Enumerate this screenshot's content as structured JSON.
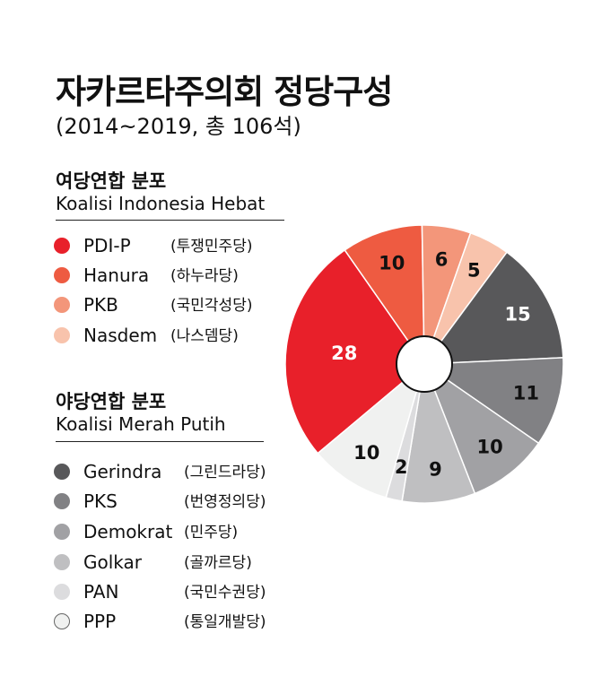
{
  "title": "자카르타주의회 정당구성",
  "subtitle": "(2014~2019, 총 106석)",
  "groups": [
    {
      "title": "여당연합 분포",
      "subtitle": "Koalisi Indonesia Hebat",
      "items": [
        {
          "name": "PDI-P",
          "korean": "(투쟁민주당)",
          "color": "#e8202a"
        },
        {
          "name": "Hanura",
          "korean": "(하누라당)",
          "color": "#ee5b41"
        },
        {
          "name": "PKB",
          "korean": "(국민각성당)",
          "color": "#f3967a"
        },
        {
          "name": "Nasdem",
          "korean": "(나스뎀당)",
          "color": "#f8c3ac"
        }
      ]
    },
    {
      "title": "야당연합 분포",
      "subtitle": "Koalisi Merah Putih",
      "items": [
        {
          "name": "Gerindra",
          "korean": "(그린드라당)",
          "color": "#58585a"
        },
        {
          "name": "PKS",
          "korean": "(번영정의당)",
          "color": "#818184"
        },
        {
          "name": "Demokrat",
          "korean": "(민주당)",
          "color": "#a1a1a4"
        },
        {
          "name": "Golkar",
          "korean": "(골까르당)",
          "color": "#bfbfc1"
        },
        {
          "name": "PAN",
          "korean": "(국민수권당)",
          "color": "#dcdcde"
        },
        {
          "name": "PPP",
          "korean": "(통일개발당)",
          "color": "#f0f1f0"
        }
      ]
    }
  ],
  "chart_data": {
    "type": "pie",
    "labels": [
      "PDI-P",
      "Hanura",
      "PKB",
      "Nasdem",
      "Gerindra",
      "PKS",
      "Demokrat",
      "Golkar",
      "PAN",
      "PPP"
    ],
    "values": [
      28,
      10,
      6,
      5,
      15,
      11,
      10,
      9,
      2,
      10
    ],
    "colors": [
      "#e8202a",
      "#ee5b41",
      "#f3967a",
      "#f8c3ac",
      "#58585a",
      "#818184",
      "#a1a1a4",
      "#bfbfc1",
      "#dcdcde",
      "#f0f1f0"
    ],
    "label_colors": [
      "#ffffff",
      "#111111",
      "#111111",
      "#111111",
      "#ffffff",
      "#111111",
      "#111111",
      "#111111",
      "#111111",
      "#111111"
    ]
  }
}
